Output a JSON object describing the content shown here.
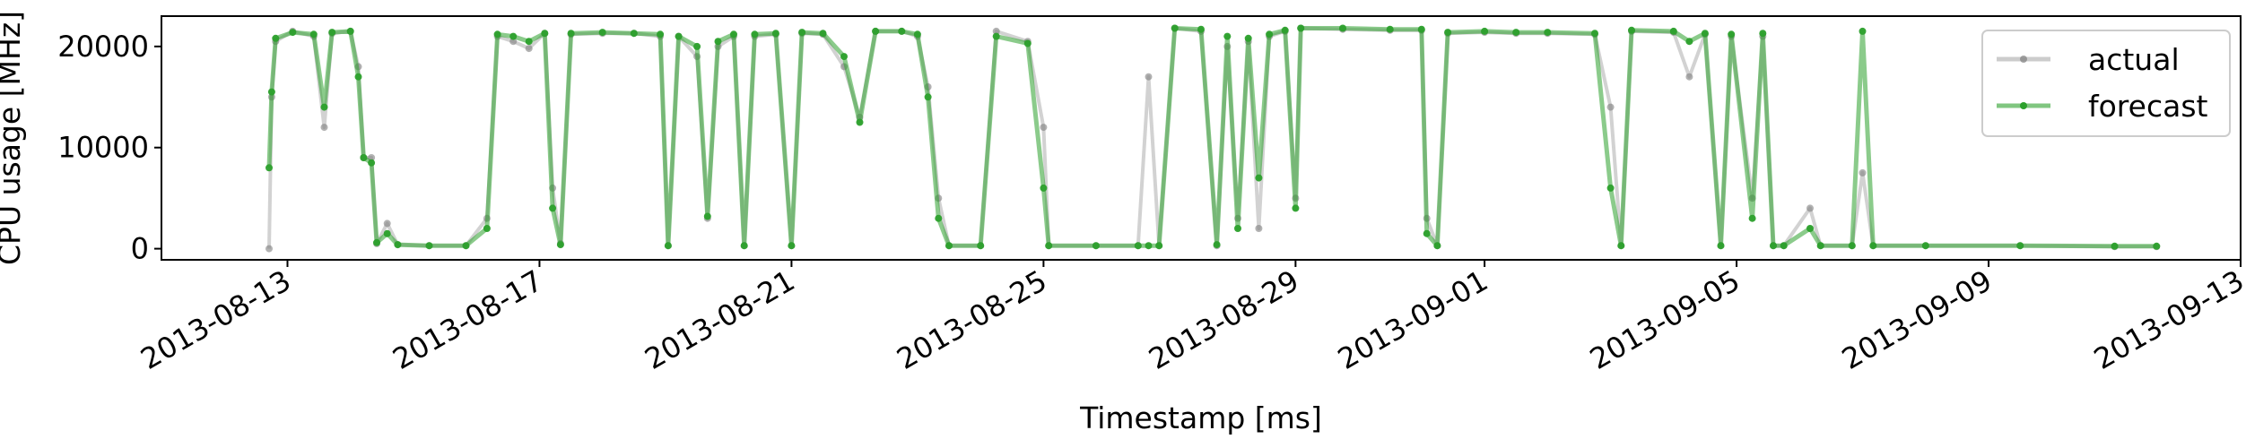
{
  "chart_data": {
    "type": "line",
    "xlabel": "Timestamp [ms]",
    "ylabel": "CPU usage [MHz]",
    "xlim": [
      "2013-08-11T00:00",
      "2013-09-13T00:00"
    ],
    "ylim": [
      -1100,
      23000
    ],
    "x_ticks": [
      {
        "date": "2013-08-13",
        "label": "2013-08-13"
      },
      {
        "date": "2013-08-17",
        "label": "2013-08-17"
      },
      {
        "date": "2013-08-21",
        "label": "2013-08-21"
      },
      {
        "date": "2013-08-25",
        "label": "2013-08-25"
      },
      {
        "date": "2013-08-29",
        "label": "2013-08-29"
      },
      {
        "date": "2013-09-01",
        "label": "2013-09-01"
      },
      {
        "date": "2013-09-05",
        "label": "2013-09-05"
      },
      {
        "date": "2013-09-09",
        "label": "2013-09-09"
      },
      {
        "date": "2013-09-13",
        "label": "2013-09-13"
      }
    ],
    "y_ticks": [
      0,
      10000,
      20000
    ],
    "grid": false,
    "legend_position": "top-right",
    "series": [
      {
        "name": "actual",
        "color": "#7f7f7f",
        "marker": "circle",
        "points": [
          [
            "2013-08-12T17:00",
            0
          ],
          [
            "2013-08-12T18:00",
            15000
          ],
          [
            "2013-08-12T19:30",
            20500
          ],
          [
            "2013-08-13T02:00",
            21500
          ],
          [
            "2013-08-13T10:00",
            21000
          ],
          [
            "2013-08-13T14:00",
            12000
          ],
          [
            "2013-08-13T17:00",
            21300
          ],
          [
            "2013-08-14T00:00",
            21500
          ],
          [
            "2013-08-14T03:00",
            18000
          ],
          [
            "2013-08-14T05:00",
            9000
          ],
          [
            "2013-08-14T08:00",
            9000
          ],
          [
            "2013-08-14T10:00",
            500
          ],
          [
            "2013-08-14T14:00",
            2500
          ],
          [
            "2013-08-14T18:00",
            400
          ],
          [
            "2013-08-15T06:00",
            300
          ],
          [
            "2013-08-15T20:00",
            300
          ],
          [
            "2013-08-16T04:00",
            3000
          ],
          [
            "2013-08-16T08:00",
            21000
          ],
          [
            "2013-08-16T14:00",
            20500
          ],
          [
            "2013-08-16T20:00",
            19800
          ],
          [
            "2013-08-17T02:00",
            21300
          ],
          [
            "2013-08-17T05:00",
            6000
          ],
          [
            "2013-08-17T08:00",
            500
          ],
          [
            "2013-08-17T12:00",
            21200
          ],
          [
            "2013-08-18T00:00",
            21300
          ],
          [
            "2013-08-18T12:00",
            21300
          ],
          [
            "2013-08-18T22:00",
            21000
          ],
          [
            "2013-08-19T01:00",
            300
          ],
          [
            "2013-08-19T05:00",
            21000
          ],
          [
            "2013-08-19T12:00",
            19000
          ],
          [
            "2013-08-19T16:00",
            3000
          ],
          [
            "2013-08-19T20:00",
            20000
          ],
          [
            "2013-08-20T02:00",
            21000
          ],
          [
            "2013-08-20T06:00",
            300
          ],
          [
            "2013-08-20T10:00",
            21000
          ],
          [
            "2013-08-20T18:00",
            21200
          ],
          [
            "2013-08-21T00:00",
            300
          ],
          [
            "2013-08-21T04:00",
            21300
          ],
          [
            "2013-08-21T12:00",
            21200
          ],
          [
            "2013-08-21T20:00",
            18000
          ],
          [
            "2013-08-22T02:00",
            13000
          ],
          [
            "2013-08-22T08:00",
            21500
          ],
          [
            "2013-08-22T18:00",
            21500
          ],
          [
            "2013-08-23T00:00",
            21000
          ],
          [
            "2013-08-23T04:00",
            16000
          ],
          [
            "2013-08-23T08:00",
            5000
          ],
          [
            "2013-08-23T12:00",
            300
          ],
          [
            "2013-08-24T00:00",
            300
          ],
          [
            "2013-08-24T06:00",
            21500
          ],
          [
            "2013-08-24T18:00",
            20500
          ],
          [
            "2013-08-25T00:00",
            12000
          ],
          [
            "2013-08-25T02:00",
            300
          ],
          [
            "2013-08-25T20:00",
            300
          ],
          [
            "2013-08-26T12:00",
            300
          ],
          [
            "2013-08-26T16:00",
            17000
          ],
          [
            "2013-08-26T20:00",
            300
          ],
          [
            "2013-08-27T02:00",
            21800
          ],
          [
            "2013-08-27T12:00",
            21500
          ],
          [
            "2013-08-27T18:00",
            300
          ],
          [
            "2013-08-27T22:00",
            20000
          ],
          [
            "2013-08-28T02:00",
            3000
          ],
          [
            "2013-08-28T06:00",
            20500
          ],
          [
            "2013-08-28T10:00",
            2000
          ],
          [
            "2013-08-28T14:00",
            21000
          ],
          [
            "2013-08-28T20:00",
            21500
          ],
          [
            "2013-08-29T00:00",
            5000
          ],
          [
            "2013-08-29T02:00",
            21800
          ],
          [
            "2013-08-29T18:00",
            21700
          ],
          [
            "2013-08-30T12:00",
            21600
          ],
          [
            "2013-08-31T00:00",
            21600
          ],
          [
            "2013-08-31T02:00",
            3000
          ],
          [
            "2013-08-31T06:00",
            300
          ],
          [
            "2013-08-31T10:00",
            21300
          ],
          [
            "2013-09-01T00:00",
            21400
          ],
          [
            "2013-09-01T12:00",
            21300
          ],
          [
            "2013-09-02T00:00",
            21300
          ],
          [
            "2013-09-02T18:00",
            21200
          ],
          [
            "2013-09-03T00:00",
            14000
          ],
          [
            "2013-09-03T04:00",
            300
          ],
          [
            "2013-09-03T08:00",
            21500
          ],
          [
            "2013-09-04T00:00",
            21400
          ],
          [
            "2013-09-04T06:00",
            17000
          ],
          [
            "2013-09-04T12:00",
            21200
          ],
          [
            "2013-09-04T18:00",
            300
          ],
          [
            "2013-09-04T22:00",
            21000
          ],
          [
            "2013-09-05T06:00",
            5000
          ],
          [
            "2013-09-05T10:00",
            21000
          ],
          [
            "2013-09-05T14:00",
            300
          ],
          [
            "2013-09-05T18:00",
            300
          ],
          [
            "2013-09-06T04:00",
            4000
          ],
          [
            "2013-09-06T08:00",
            300
          ],
          [
            "2013-09-06T20:00",
            300
          ],
          [
            "2013-09-07T00:00",
            7500
          ],
          [
            "2013-09-07T04:00",
            300
          ],
          [
            "2013-09-08T00:00",
            300
          ],
          [
            "2013-09-09T12:00",
            300
          ],
          [
            "2013-09-11T00:00",
            200
          ],
          [
            "2013-09-11T16:00",
            200
          ]
        ]
      },
      {
        "name": "forecast",
        "color": "#2ca02c",
        "marker": "circle",
        "points": [
          [
            "2013-08-12T17:00",
            8000
          ],
          [
            "2013-08-12T18:00",
            15500
          ],
          [
            "2013-08-12T19:30",
            20800
          ],
          [
            "2013-08-13T02:00",
            21400
          ],
          [
            "2013-08-13T10:00",
            21200
          ],
          [
            "2013-08-13T14:00",
            14000
          ],
          [
            "2013-08-13T17:00",
            21400
          ],
          [
            "2013-08-14T00:00",
            21500
          ],
          [
            "2013-08-14T03:00",
            17000
          ],
          [
            "2013-08-14T05:00",
            9000
          ],
          [
            "2013-08-14T08:00",
            8500
          ],
          [
            "2013-08-14T10:00",
            600
          ],
          [
            "2013-08-14T14:00",
            1500
          ],
          [
            "2013-08-14T18:00",
            400
          ],
          [
            "2013-08-15T06:00",
            300
          ],
          [
            "2013-08-15T20:00",
            300
          ],
          [
            "2013-08-16T04:00",
            2000
          ],
          [
            "2013-08-16T08:00",
            21200
          ],
          [
            "2013-08-16T14:00",
            21000
          ],
          [
            "2013-08-16T20:00",
            20500
          ],
          [
            "2013-08-17T02:00",
            21300
          ],
          [
            "2013-08-17T05:00",
            4000
          ],
          [
            "2013-08-17T08:00",
            400
          ],
          [
            "2013-08-17T12:00",
            21300
          ],
          [
            "2013-08-18T00:00",
            21400
          ],
          [
            "2013-08-18T12:00",
            21300
          ],
          [
            "2013-08-18T22:00",
            21200
          ],
          [
            "2013-08-19T01:00",
            300
          ],
          [
            "2013-08-19T05:00",
            21000
          ],
          [
            "2013-08-19T12:00",
            20000
          ],
          [
            "2013-08-19T16:00",
            3200
          ],
          [
            "2013-08-19T20:00",
            20500
          ],
          [
            "2013-08-20T02:00",
            21200
          ],
          [
            "2013-08-20T06:00",
            300
          ],
          [
            "2013-08-20T10:00",
            21200
          ],
          [
            "2013-08-20T18:00",
            21300
          ],
          [
            "2013-08-21T00:00",
            300
          ],
          [
            "2013-08-21T04:00",
            21400
          ],
          [
            "2013-08-21T12:00",
            21300
          ],
          [
            "2013-08-21T20:00",
            19000
          ],
          [
            "2013-08-22T02:00",
            12500
          ],
          [
            "2013-08-22T08:00",
            21500
          ],
          [
            "2013-08-22T18:00",
            21500
          ],
          [
            "2013-08-23T00:00",
            21200
          ],
          [
            "2013-08-23T04:00",
            15000
          ],
          [
            "2013-08-23T08:00",
            3000
          ],
          [
            "2013-08-23T12:00",
            300
          ],
          [
            "2013-08-24T00:00",
            300
          ],
          [
            "2013-08-24T06:00",
            21000
          ],
          [
            "2013-08-24T18:00",
            20300
          ],
          [
            "2013-08-25T00:00",
            6000
          ],
          [
            "2013-08-25T02:00",
            300
          ],
          [
            "2013-08-25T20:00",
            300
          ],
          [
            "2013-08-26T12:00",
            300
          ],
          [
            "2013-08-26T16:00",
            300
          ],
          [
            "2013-08-26T20:00",
            300
          ],
          [
            "2013-08-27T02:00",
            21800
          ],
          [
            "2013-08-27T12:00",
            21700
          ],
          [
            "2013-08-27T18:00",
            400
          ],
          [
            "2013-08-27T22:00",
            21000
          ],
          [
            "2013-08-28T02:00",
            2000
          ],
          [
            "2013-08-28T06:00",
            20800
          ],
          [
            "2013-08-28T10:00",
            7000
          ],
          [
            "2013-08-28T14:00",
            21200
          ],
          [
            "2013-08-28T20:00",
            21600
          ],
          [
            "2013-08-29T00:00",
            4000
          ],
          [
            "2013-08-29T02:00",
            21800
          ],
          [
            "2013-08-29T18:00",
            21800
          ],
          [
            "2013-08-30T12:00",
            21700
          ],
          [
            "2013-08-31T00:00",
            21700
          ],
          [
            "2013-08-31T02:00",
            1500
          ],
          [
            "2013-08-31T06:00",
            300
          ],
          [
            "2013-08-31T10:00",
            21400
          ],
          [
            "2013-09-01T00:00",
            21500
          ],
          [
            "2013-09-01T12:00",
            21400
          ],
          [
            "2013-09-02T00:00",
            21400
          ],
          [
            "2013-09-02T18:00",
            21300
          ],
          [
            "2013-09-03T00:00",
            6000
          ],
          [
            "2013-09-03T04:00",
            300
          ],
          [
            "2013-09-03T08:00",
            21600
          ],
          [
            "2013-09-04T00:00",
            21500
          ],
          [
            "2013-09-04T06:00",
            20500
          ],
          [
            "2013-09-04T12:00",
            21300
          ],
          [
            "2013-09-04T18:00",
            300
          ],
          [
            "2013-09-04T22:00",
            21200
          ],
          [
            "2013-09-05T06:00",
            3000
          ],
          [
            "2013-09-05T10:00",
            21300
          ],
          [
            "2013-09-05T14:00",
            300
          ],
          [
            "2013-09-05T18:00",
            300
          ],
          [
            "2013-09-06T04:00",
            2000
          ],
          [
            "2013-09-06T08:00",
            300
          ],
          [
            "2013-09-06T20:00",
            300
          ],
          [
            "2013-09-07T00:00",
            21500
          ],
          [
            "2013-09-07T04:00",
            300
          ],
          [
            "2013-09-08T00:00",
            300
          ],
          [
            "2013-09-09T12:00",
            300
          ],
          [
            "2013-09-11T00:00",
            250
          ],
          [
            "2013-09-11T16:00",
            250
          ]
        ]
      }
    ]
  }
}
